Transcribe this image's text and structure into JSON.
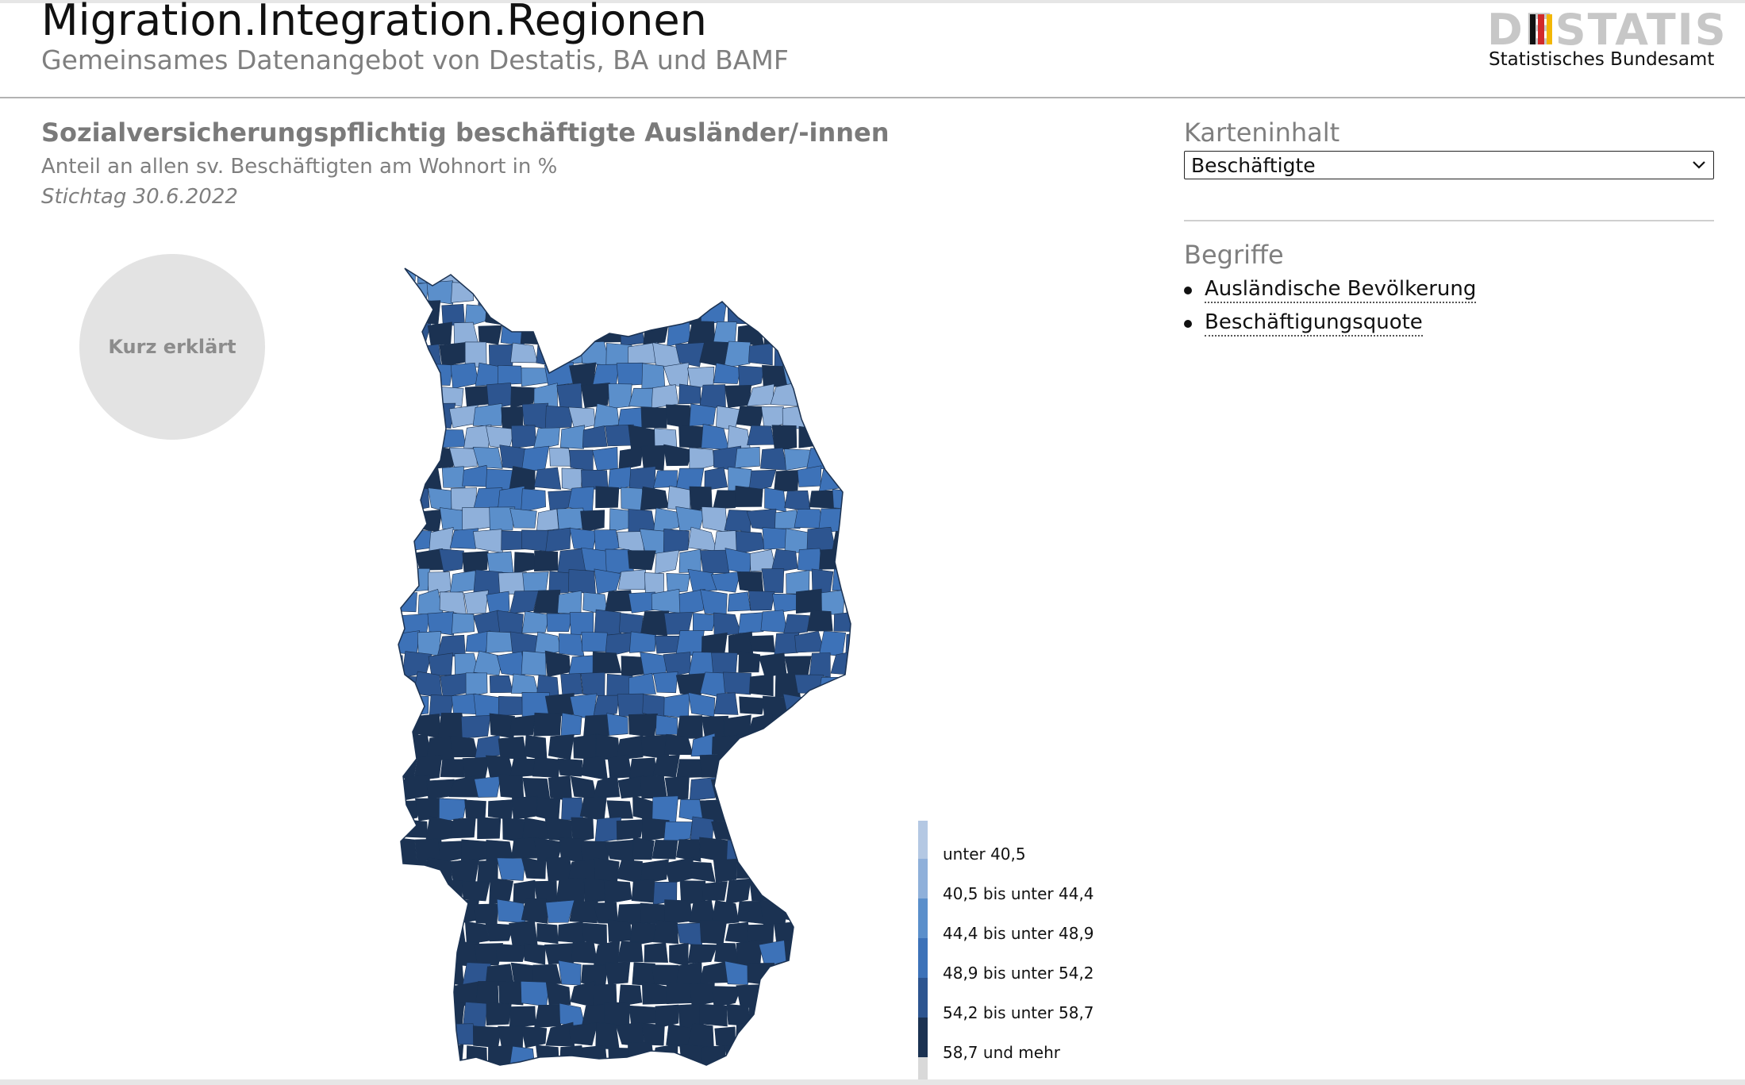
{
  "header": {
    "title": "Migration.Integration.Regionen",
    "subtitle": "Gemeinsames Datenangebot von Destatis, BA und BAMF",
    "logo_word": "DESTATIS",
    "logo_sub": "Statistisches Bundesamt",
    "logo_flag_colors": [
      "#111111",
      "#d12a2a",
      "#f2b705"
    ]
  },
  "map": {
    "title": "Sozialversicherungspflichtig beschäftigte Ausländer/-innen",
    "subtitle": "Anteil an allen sv. Beschäftigten am Wohnort in %",
    "date": "Stichtag 30.6.2022",
    "explain_button": "Kurz erklärt",
    "legend": [
      {
        "label": "unter 40,5",
        "color": "#b4c8e3"
      },
      {
        "label": "40,5 bis unter 44,4",
        "color": "#8fb0da"
      },
      {
        "label": "44,4 bis unter 48,9",
        "color": "#5b8fcb"
      },
      {
        "label": "48,9 bis unter 54,2",
        "color": "#3d72b8"
      },
      {
        "label": "54,2 bis unter 58,7",
        "color": "#2d5590"
      },
      {
        "label": "58,7 und mehr",
        "color": "#1b3252"
      }
    ]
  },
  "sidebar": {
    "content_heading": "Karteninhalt",
    "select_value": "Beschäftigte",
    "terms_heading": "Begriffe",
    "terms": [
      "Ausländische Bevölkerung",
      "Beschäftigungsquote"
    ]
  },
  "icons": {
    "dropdown": "chevron-down-icon",
    "list_bullet": "bullet-icon"
  }
}
